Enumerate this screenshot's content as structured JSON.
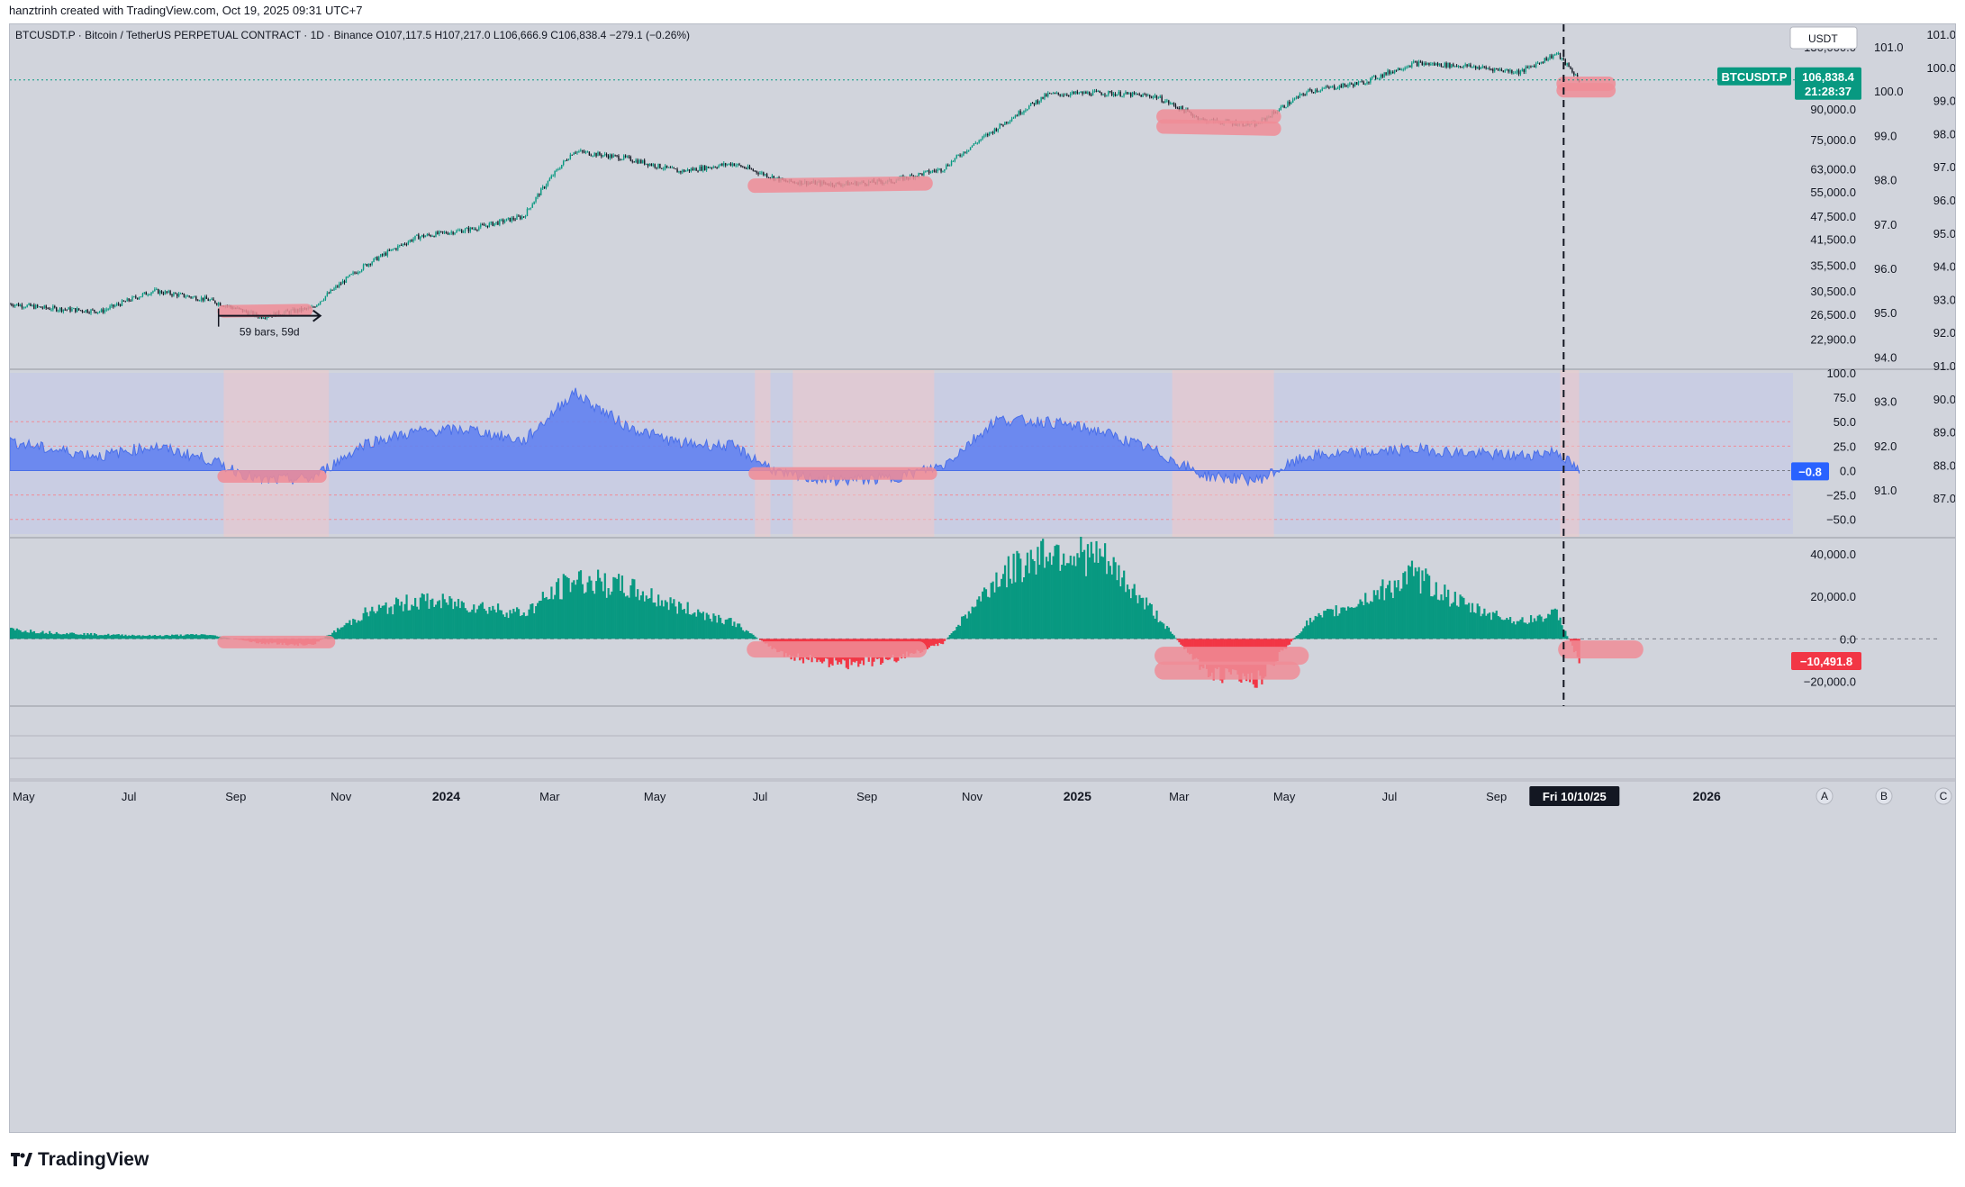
{
  "header": {
    "credit": "hanztrinh created with TradingView.com, Oct 19, 2025 09:31 UTC+7"
  },
  "legend": {
    "text": "BTCUSDT.P · Bitcoin / TetherUS PERPETUAL CONTRACT · 1D · Binance O107,117.5 H107,217.0 L106,666.9 C106,838.4 −279.1 (−0.26%)"
  },
  "currency_button": "USDT",
  "price_badge": {
    "symbol": "BTCUSDT.P",
    "price": "106,838.4",
    "countdown": "21:28:37"
  },
  "rsi_badge": "−0.8",
  "hist_badge": "−10,491.8",
  "cursor_date": "Fri 10/10/25",
  "measure_label": "59 bars, 59d",
  "scale_buttons": [
    "A",
    "B",
    "C"
  ],
  "footer": {
    "brand": "TradingView"
  },
  "colors": {
    "background": "#d1d4dc",
    "candle_up": "#089981",
    "candle_down": "#131722",
    "oscillator_fill": "#6282f0",
    "hist_positive": "#089981",
    "hist_negative": "#f23645",
    "highlight": "#f08c96",
    "price_badge": "#089981",
    "rsi_badge": "#2962ff",
    "hist_badge": "#f23645"
  },
  "chart_data": [
    {
      "type": "line",
      "title": "BTCUSDT.P · Bitcoin / TetherUS PERPETUAL CONTRACT · 1D · Binance",
      "price_scale_labels": [
        "130,000.0",
        "110,000.0",
        "90,000.0",
        "75,000.0",
        "63,000.0",
        "55,000.0",
        "47,500.0",
        "41,500.0",
        "35,500.0",
        "30,500.0",
        "26,500.0",
        "22,900.0"
      ],
      "secondary_scale_a": [
        "101.0",
        "100.0",
        "99.0",
        "98.0",
        "97.0",
        "96.0",
        "95.0",
        "94.0",
        "93.0",
        "92.0",
        "91.0"
      ],
      "secondary_scale_b": [
        "101.0",
        "100.0",
        "99.0",
        "98.0",
        "97.0",
        "96.0",
        "95.0",
        "94.0",
        "93.0",
        "92.0",
        "91.0",
        "90.0",
        "89.0",
        "88.0",
        "87.0"
      ],
      "x_tick_labels": [
        "May",
        "Jul",
        "Sep",
        "Nov",
        "2024",
        "Mar",
        "May",
        "Jul",
        "Sep",
        "Nov",
        "2025",
        "Mar",
        "May",
        "Jul",
        "Sep",
        "2026"
      ],
      "series": [
        {
          "name": "BTCUSDT.P",
          "x": [
            "2023-04",
            "2023-05",
            "2023-06",
            "2023-07",
            "2023-08",
            "2023-09",
            "2023-10",
            "2023-11",
            "2023-12",
            "2024-01",
            "2024-02",
            "2024-03",
            "2024-04",
            "2024-05",
            "2024-06",
            "2024-07",
            "2024-08",
            "2024-09",
            "2024-10",
            "2024-11",
            "2024-12",
            "2025-01",
            "2025-02",
            "2025-03",
            "2025-04",
            "2025-05",
            "2025-06",
            "2025-07",
            "2025-08",
            "2025-09",
            "2025-10-06",
            "2025-10-19"
          ],
          "values": [
            28500,
            27500,
            27000,
            30500,
            29000,
            26200,
            27500,
            35500,
            42000,
            44000,
            47500,
            70000,
            67000,
            62000,
            65000,
            58500,
            57500,
            58500,
            63000,
            80000,
            98000,
            99000,
            97000,
            84000,
            82000,
            100000,
            105000,
            118000,
            116000,
            112000,
            125000,
            106838.4
          ]
        }
      ],
      "last_close": 106838.4
    },
    {
      "type": "area",
      "y_tick_labels": [
        "100.0",
        "75.0",
        "50.0",
        "25.0",
        "0.0",
        "−25.0",
        "−50.0"
      ],
      "ylim": [
        -65,
        100
      ],
      "reference_lines": [
        50,
        25,
        0,
        -25,
        -50
      ],
      "series": [
        {
          "x": [
            "2023-04",
            "2023-05",
            "2023-06",
            "2023-07",
            "2023-08",
            "2023-09",
            "2023-10",
            "2023-11",
            "2023-12",
            "2024-01",
            "2024-02",
            "2024-03",
            "2024-04",
            "2024-05",
            "2024-06",
            "2024-07",
            "2024-08",
            "2024-09",
            "2024-10",
            "2024-11",
            "2024-12",
            "2025-01",
            "2025-02",
            "2025-03",
            "2025-04",
            "2025-05",
            "2025-06",
            "2025-07",
            "2025-08",
            "2025-09",
            "2025-10-06",
            "2025-10-19"
          ],
          "values": [
            33,
            22,
            15,
            25,
            12,
            -10,
            -8,
            28,
            40,
            42,
            30,
            80,
            45,
            28,
            25,
            -5,
            -10,
            -8,
            5,
            52,
            50,
            40,
            20,
            -5,
            -10,
            15,
            18,
            22,
            18,
            15,
            20,
            -0.8
          ]
        }
      ],
      "last_value": -0.8
    },
    {
      "type": "bar",
      "y_tick_labels": [
        "40,000.0",
        "20,000.0",
        "0.0",
        "−20,000.0"
      ],
      "ylim": [
        -30000,
        46000
      ],
      "series": [
        {
          "x": [
            "2023-04",
            "2023-05",
            "2023-06",
            "2023-07",
            "2023-08",
            "2023-09",
            "2023-10",
            "2023-11",
            "2023-12",
            "2024-01",
            "2024-02",
            "2024-03",
            "2024-04",
            "2024-05",
            "2024-06",
            "2024-07",
            "2024-08",
            "2024-09",
            "2024-10",
            "2024-11",
            "2024-12",
            "2025-01",
            "2025-02",
            "2025-03",
            "2025-04",
            "2025-05",
            "2025-06",
            "2025-07",
            "2025-08",
            "2025-09",
            "2025-10-06",
            "2025-10-19"
          ],
          "values": [
            5000,
            3000,
            2000,
            1500,
            2000,
            -2000,
            -3000,
            12000,
            18000,
            16000,
            12000,
            28000,
            24000,
            15000,
            8000,
            -8000,
            -12000,
            -10000,
            -2000,
            28000,
            42000,
            38000,
            12000,
            -15000,
            -20000,
            8000,
            18000,
            30000,
            15000,
            8000,
            12000,
            -10491.8
          ]
        }
      ],
      "last_value": -10491.8
    }
  ]
}
